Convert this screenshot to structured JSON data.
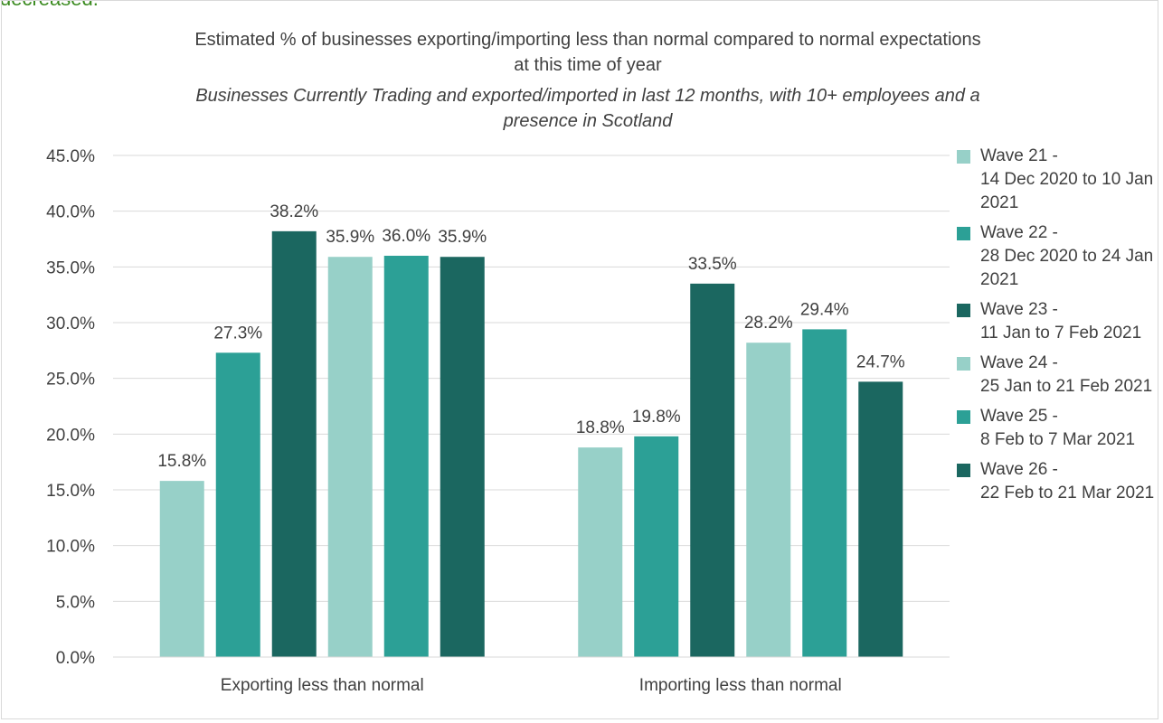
{
  "prev_text": "decreased.",
  "chart_data": {
    "type": "bar",
    "title_lines": [
      "Estimated % of businesses exporting/importing less than normal compared to normal expectations",
      "at this time of year"
    ],
    "subtitle_lines": [
      "Businesses Currently Trading and exported/imported in last 12 months, with 10+ employees and a",
      "presence in Scotland"
    ],
    "categories": [
      "Exporting less than normal",
      "Importing less than normal"
    ],
    "ylim": [
      0,
      45
    ],
    "yticks": [
      0,
      5,
      10,
      15,
      20,
      25,
      30,
      35,
      40,
      45
    ],
    "ytick_labels": [
      "0.0%",
      "5.0%",
      "10.0%",
      "15.0%",
      "20.0%",
      "25.0%",
      "30.0%",
      "35.0%",
      "40.0%",
      "45.0%"
    ],
    "grid": true,
    "legend_position": "right",
    "series": [
      {
        "name_line1": "Wave 21 -",
        "name_rest": "14 Dec 2020 to 10 Jan 2021",
        "color": "#97d0c8",
        "values": [
          15.8,
          18.8
        ],
        "labels": [
          "15.8%",
          "18.8%"
        ]
      },
      {
        "name_line1": "Wave 22 -",
        "name_rest": "28 Dec 2020 to 24 Jan 2021",
        "color": "#2ca096",
        "values": [
          27.3,
          19.8
        ],
        "labels": [
          "27.3%",
          "19.8%"
        ]
      },
      {
        "name_line1": "Wave 23 -",
        "name_rest": "11 Jan to 7 Feb 2021",
        "color": "#1b6760",
        "values": [
          38.2,
          33.5
        ],
        "labels": [
          "38.2%",
          "33.5%"
        ]
      },
      {
        "name_line1": "Wave 24 -",
        "name_rest": "25 Jan to 21 Feb 2021",
        "color": "#97d0c8",
        "values": [
          35.9,
          28.2
        ],
        "labels": [
          "35.9%",
          "28.2%"
        ]
      },
      {
        "name_line1": "Wave 25 -",
        "name_rest": "8 Feb to 7 Mar 2021",
        "color": "#2ca096",
        "values": [
          36.0,
          29.4
        ],
        "labels": [
          "36.0%",
          "29.4%"
        ]
      },
      {
        "name_line1": "Wave 26 -",
        "name_rest": "22 Feb to 21 Mar 2021",
        "color": "#1b6760",
        "values": [
          35.9,
          24.7
        ],
        "labels": [
          "35.9%",
          "24.7%"
        ]
      }
    ]
  }
}
